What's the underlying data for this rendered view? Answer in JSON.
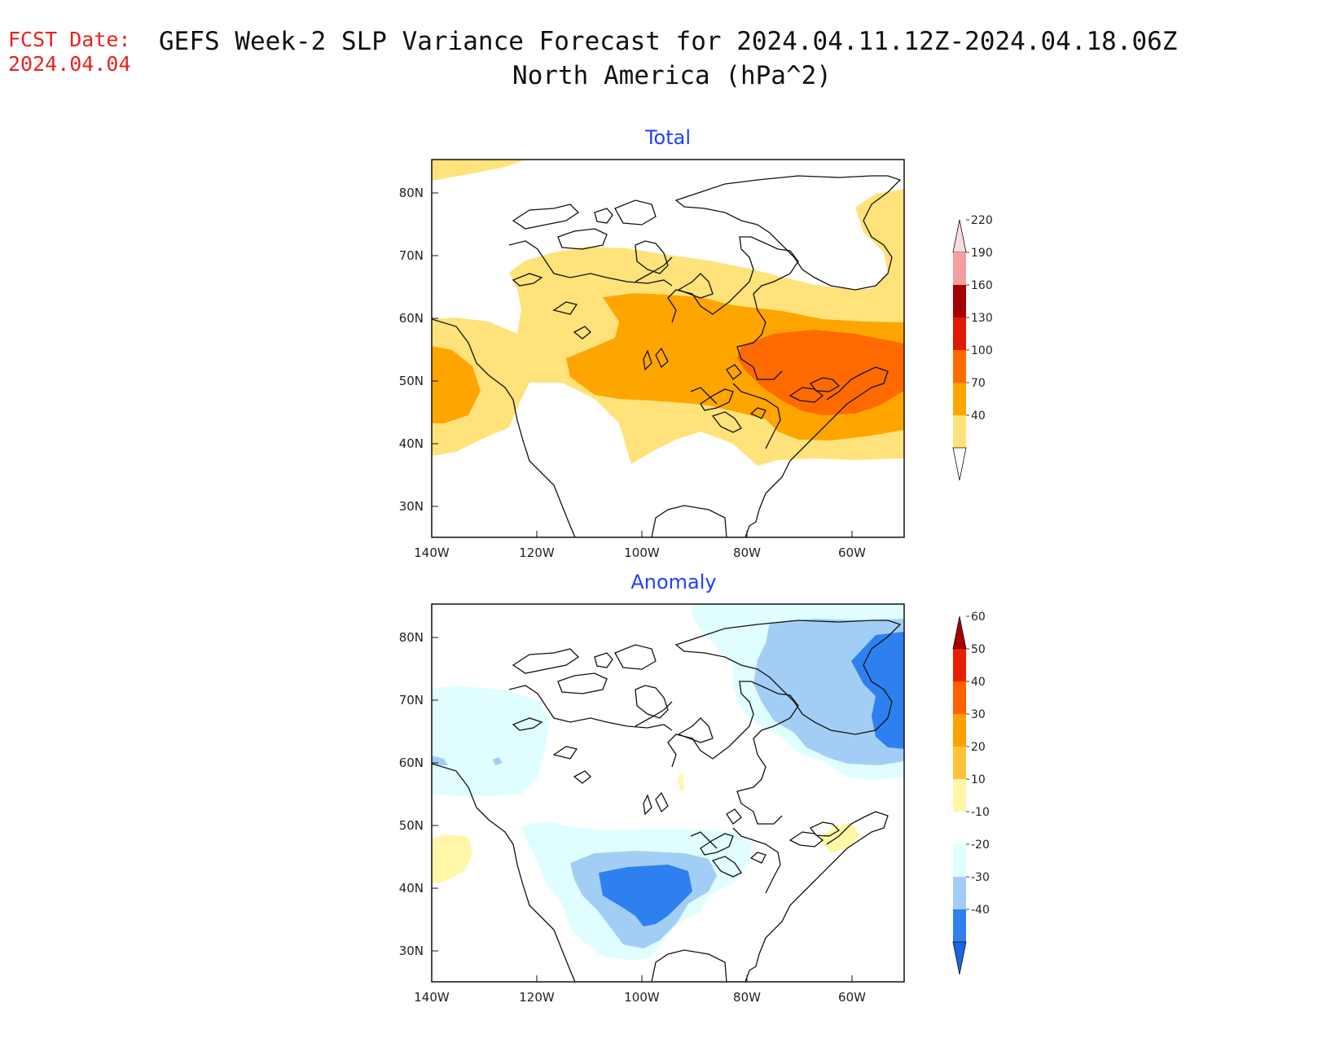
{
  "fcst": {
    "label": "FCST Date:",
    "date": "2024.04.04"
  },
  "title": {
    "line1": "GEFS Week-2 SLP Variance Forecast for 2024.04.11.12Z-2024.04.18.06Z",
    "line2": "North America (hPa^2)"
  },
  "panels": [
    {
      "title": "Total",
      "lat_labels": [
        "80N",
        "70N",
        "60N",
        "50N",
        "40N",
        "30N"
      ],
      "lon_labels": [
        "140W",
        "120W",
        "100W",
        "80W",
        "60W"
      ],
      "colorbar": {
        "levels": [
          "40",
          "70",
          "100",
          "130",
          "160",
          "190",
          "220"
        ],
        "colors": [
          "#ffe27a",
          "#ffa500",
          "#ff6a00",
          "#e01a00",
          "#a50000",
          "#f49ea0",
          "#fbdcdc"
        ]
      }
    },
    {
      "title": "Anomaly",
      "lat_labels": [
        "80N",
        "70N",
        "60N",
        "50N",
        "40N",
        "30N"
      ],
      "lon_labels": [
        "140W",
        "120W",
        "100W",
        "80W",
        "60W"
      ],
      "colorbar": {
        "levels": [
          "-40",
          "-30",
          "-20",
          "-10",
          "10",
          "20",
          "30",
          "40",
          "50",
          "60"
        ],
        "colors": [
          "#1a66e0",
          "#2d80ee",
          "#a2cef5",
          "#e0feff",
          "#ffffff",
          "#fff6a8",
          "#ffc33a",
          "#ffa000",
          "#ff6000",
          "#e82000",
          "#a80000"
        ]
      }
    }
  ]
}
